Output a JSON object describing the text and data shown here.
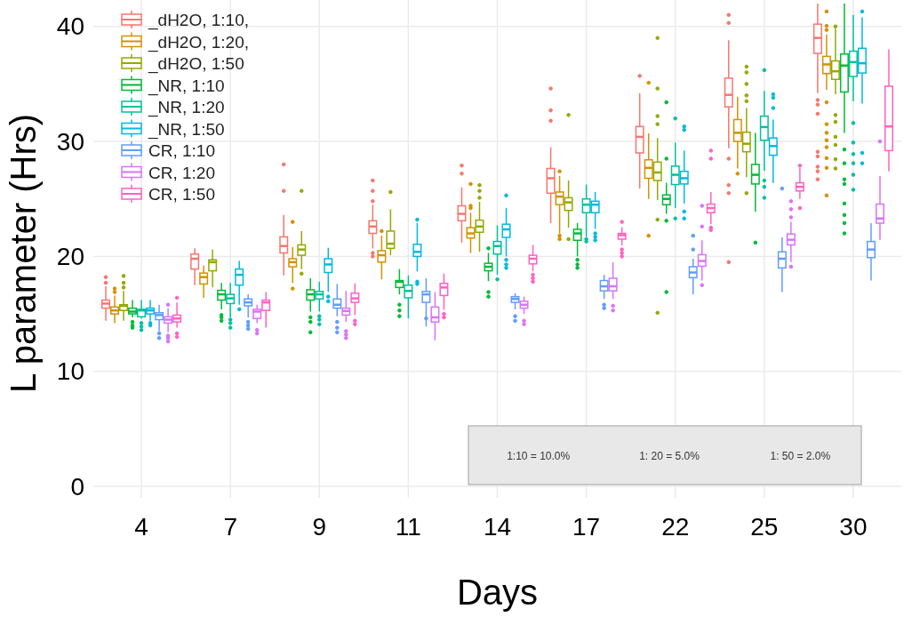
{
  "chart_data": {
    "type": "box",
    "xlabel": "Days",
    "ylabel": "L parameter (Hrs)",
    "categories": [
      "4",
      "7",
      "9",
      "11",
      "14",
      "17",
      "22",
      "25",
      "30"
    ],
    "ylim": [
      -1,
      42.3
    ],
    "yticks": [
      0,
      10,
      20,
      30,
      40
    ],
    "grid": true,
    "legend": "top left",
    "annotations": [
      "1:10 = 10.0%",
      "1: 20 = 5.0%",
      "1: 50 = 2.0%"
    ],
    "series": [
      {
        "name": "_dH2O, 1:10,",
        "color": "#f8766d",
        "boxes": [
          {
            "low": 14.4,
            "q1": 15.5,
            "median": 15.9,
            "q3": 16.2,
            "high": 17.4,
            "outliers": [
              17.7,
              18.2
            ]
          },
          {
            "low": 17.5,
            "q1": 18.9,
            "median": 19.8,
            "q3": 20.2,
            "high": 20.7
          },
          {
            "low": 18.35,
            "q1": 20.3,
            "median": 20.9,
            "q3": 21.7,
            "high": 23.6,
            "outliers": [
              25.7,
              28.0
            ]
          },
          {
            "low": 20.7,
            "q1": 22.0,
            "median": 22.6,
            "q3": 23.1,
            "high": 24.5,
            "outliers": [
              20.0,
              20.3,
              24.8,
              25.7,
              26.6
            ]
          },
          {
            "low": 21.2,
            "q1": 23.1,
            "median": 23.7,
            "q3": 24.4,
            "high": 26.0,
            "outliers": [
              27.2,
              27.9
            ]
          },
          {
            "low": 22.9,
            "q1": 25.5,
            "median": 26.8,
            "q3": 27.65,
            "high": 29.5,
            "outliers": [
              31.8,
              32.7,
              34.6
            ]
          },
          {
            "low": 25.9,
            "q1": 29.0,
            "median": 30.4,
            "q3": 31.3,
            "high": 34.2,
            "outliers": [
              35.7
            ]
          },
          {
            "low": 29.4,
            "q1": 33.0,
            "median": 34.05,
            "q3": 35.5,
            "high": 38.8,
            "outliers": [
              19.5,
              25.5,
              26.2,
              28.5,
              40.3,
              41.0
            ]
          },
          {
            "low": 34.2,
            "q1": 37.65,
            "median": 39.0,
            "q3": 40.2,
            "high": 42.0,
            "outliers": [
              26.7,
              27.4,
              27.8,
              28.7,
              29.1,
              32.4,
              33.2,
              33.6
            ]
          }
        ]
      },
      {
        "name": "_dH2O, 1:20,",
        "color": "#d39200",
        "boxes": [
          {
            "low": 14.2,
            "q1": 15.0,
            "median": 15.3,
            "q3": 15.6,
            "high": 16.6,
            "outliers": [
              16.9,
              17.2
            ]
          },
          {
            "low": 16.4,
            "q1": 17.6,
            "median": 18.2,
            "q3": 18.55,
            "high": 19.2
          },
          {
            "low": 17.7,
            "q1": 19.1,
            "median": 19.5,
            "q3": 19.8,
            "high": 20.8,
            "outliers": [
              17.2,
              23.0
            ]
          },
          {
            "low": 18.0,
            "q1": 19.5,
            "median": 20.1,
            "q3": 20.5,
            "high": 21.8,
            "outliers": [
              22.2
            ]
          },
          {
            "low": 20.3,
            "q1": 21.6,
            "median": 22.0,
            "q3": 22.5,
            "high": 23.8,
            "outliers": [
              24.2,
              24.4,
              26.3
            ]
          },
          {
            "low": 22.0,
            "q1": 24.5,
            "median": 25.2,
            "q3": 25.6,
            "high": 27.0,
            "outliers": [
              21.5,
              21.8,
              27.4
            ]
          },
          {
            "low": 25.0,
            "q1": 26.8,
            "median": 27.7,
            "q3": 28.4,
            "high": 30.7,
            "outliers": [
              21.8,
              35.1
            ]
          },
          {
            "low": 27.65,
            "q1": 30.0,
            "median": 30.75,
            "q3": 31.9,
            "high": 33.9,
            "outliers": [
              27.2
            ]
          },
          {
            "low": 34.5,
            "q1": 35.9,
            "median": 36.7,
            "q3": 37.4,
            "high": 39.3,
            "outliers": [
              25.3,
              27.7,
              28.55,
              29.5,
              30.1,
              30.75,
              31.5,
              33.4,
              39.7,
              40.05,
              41.3
            ]
          }
        ]
      },
      {
        "name": "_dH2O, 1:50",
        "color": "#93aa00",
        "boxes": [
          {
            "low": 14.4,
            "q1": 15.3,
            "median": 15.7,
            "q3": 15.8,
            "high": 17.0,
            "outliers": [
              17.3,
              17.7,
              18.3
            ]
          },
          {
            "low": 17.3,
            "q1": 18.75,
            "median": 19.5,
            "q3": 19.7,
            "high": 20.6
          },
          {
            "low": 18.9,
            "q1": 20.1,
            "median": 20.6,
            "q3": 21.0,
            "high": 22.2,
            "outliers": [
              18.5,
              25.7
            ]
          },
          {
            "low": 20.1,
            "q1": 20.7,
            "median": 21.1,
            "q3": 22.2,
            "high": 24.1,
            "outliers": [
              25.6
            ]
          },
          {
            "low": 20.4,
            "q1": 22.1,
            "median": 22.6,
            "q3": 23.15,
            "high": 24.75,
            "outliers": [
              25.1,
              25.7,
              26.2
            ]
          },
          {
            "low": 22.5,
            "q1": 24.0,
            "median": 24.7,
            "q3": 25.1,
            "high": 26.6,
            "outliers": [
              21.5,
              32.3
            ]
          },
          {
            "low": 24.9,
            "q1": 26.6,
            "median": 27.3,
            "q3": 28.2,
            "high": 30.3,
            "outliers": [
              15.1,
              23.2,
              31.5,
              32.2,
              34.6,
              39.0
            ]
          },
          {
            "low": 26.9,
            "q1": 29.1,
            "median": 29.8,
            "q3": 30.8,
            "high": 32.9,
            "outliers": [
              25.5,
              33.5,
              34.0,
              35.0,
              36.0,
              36.5
            ]
          },
          {
            "low": 34.1,
            "q1": 35.4,
            "median": 36.1,
            "q3": 37.0,
            "high": 39.8,
            "outliers": [
              27.65,
              28.45,
              29.7,
              30.4,
              31.7,
              32.3,
              40.0
            ]
          }
        ]
      },
      {
        "name": "_NR, 1:10",
        "color": "#00ba38",
        "boxes": [
          {
            "low": 14.7,
            "q1": 15.0,
            "median": 15.2,
            "q3": 15.5,
            "high": 16.2,
            "outliers": [
              13.8,
              14.0,
              14.3
            ]
          },
          {
            "low": 15.4,
            "q1": 16.2,
            "median": 16.7,
            "q3": 17.05,
            "high": 17.7,
            "outliers": [
              14.4,
              14.7,
              14.9
            ]
          },
          {
            "low": 15.2,
            "q1": 16.2,
            "median": 16.7,
            "q3": 17.1,
            "high": 18.1,
            "outliers": [
              13.4,
              14.3,
              14.7
            ]
          },
          {
            "low": 16.7,
            "q1": 17.3,
            "median": 17.8,
            "q3": 17.9,
            "high": 18.9,
            "outliers": [
              14.8,
              15.3,
              15.8
            ]
          },
          {
            "low": 17.85,
            "q1": 18.75,
            "median": 19.1,
            "q3": 19.4,
            "high": 20.3,
            "outliers": [
              16.5,
              16.9,
              20.7
            ]
          },
          {
            "low": 20.0,
            "q1": 21.4,
            "median": 22.0,
            "q3": 22.35,
            "high": 22.9,
            "outliers": [
              19.0,
              19.3,
              19.7
            ]
          },
          {
            "low": 23.7,
            "q1": 24.5,
            "median": 25.0,
            "q3": 25.35,
            "high": 26.4,
            "outliers": [
              16.9,
              23.1,
              28.5,
              33.4
            ]
          },
          {
            "low": 23.9,
            "q1": 26.3,
            "median": 27.1,
            "q3": 28.0,
            "high": 30.75,
            "outliers": [
              21.2
            ]
          },
          {
            "low": 30.75,
            "q1": 34.3,
            "median": 36.6,
            "q3": 37.6,
            "high": 42.0,
            "outliers": [
              22.0,
              22.9,
              23.6,
              24.6,
              26.3,
              26.7,
              28.1,
              29.3
            ]
          }
        ]
      },
      {
        "name": "_NR, 1:20",
        "color": "#00c19f",
        "boxes": [
          {
            "low": 14.6,
            "q1": 14.75,
            "median": 15.3,
            "q3": 15.4,
            "high": 16.2,
            "outliers": [
              13.6,
              13.9,
              14.2
            ]
          },
          {
            "low": 14.7,
            "q1": 15.9,
            "median": 16.35,
            "q3": 16.7,
            "high": 17.7,
            "outliers": [
              13.8,
              14.2,
              14.5
            ]
          },
          {
            "low": 15.2,
            "q1": 16.3,
            "median": 16.7,
            "q3": 16.95,
            "high": 17.8,
            "outliers": [
              14.1,
              14.5,
              14.8
            ]
          },
          {
            "low": 14.6,
            "q1": 16.4,
            "median": 17.0,
            "q3": 17.5,
            "high": 18.35
          },
          {
            "low": 18.4,
            "q1": 20.2,
            "median": 20.9,
            "q3": 21.3,
            "high": 22.7,
            "outliers": [
              18.0
            ]
          },
          {
            "low": 21.7,
            "q1": 23.8,
            "median": 24.5,
            "q3": 25.0,
            "high": 26.25,
            "outliers": [
              21.3,
              21.5
            ]
          },
          {
            "low": 24.2,
            "q1": 26.25,
            "median": 27.1,
            "q3": 27.85,
            "high": 29.9,
            "outliers": [
              23.3,
              32.0
            ]
          },
          {
            "low": 27.45,
            "q1": 30.1,
            "median": 31.25,
            "q3": 32.2,
            "high": 34.4,
            "outliers": [
              25.1,
              26.05,
              26.6,
              36.2
            ]
          },
          {
            "low": 33.5,
            "q1": 35.65,
            "median": 36.9,
            "q3": 37.85,
            "high": 41.0,
            "outliers": [
              25.8,
              27.1,
              28.1,
              28.9,
              29.9,
              31.6
            ]
          }
        ]
      },
      {
        "name": "_NR, 1:50",
        "color": "#00b9e3",
        "boxes": [
          {
            "low": 14.4,
            "q1": 15.0,
            "median": 15.3,
            "q3": 15.5,
            "high": 16.2,
            "outliers": [
              14.0,
              14.2
            ]
          },
          {
            "low": 15.8,
            "q1": 17.5,
            "median": 18.4,
            "q3": 18.9,
            "high": 19.6,
            "outliers": [
              15.4
            ]
          },
          {
            "low": 16.9,
            "q1": 18.6,
            "median": 19.3,
            "q3": 19.8,
            "high": 20.75,
            "outliers": [
              16.1,
              16.5
            ]
          },
          {
            "low": 18.7,
            "q1": 20.0,
            "median": 20.4,
            "q3": 21.05,
            "high": 22.9,
            "outliers": [
              17.6,
              17.8,
              23.2
            ]
          },
          {
            "low": 20.0,
            "q1": 21.65,
            "median": 22.35,
            "q3": 22.8,
            "high": 24.2,
            "outliers": [
              19.0,
              19.3,
              19.7,
              25.3
            ]
          },
          {
            "low": 22.4,
            "q1": 23.8,
            "median": 24.5,
            "q3": 24.8,
            "high": 25.6,
            "outliers": [
              21.4,
              21.7,
              22.0
            ]
          },
          {
            "low": 24.6,
            "q1": 26.3,
            "median": 26.8,
            "q3": 27.4,
            "high": 29.2,
            "outliers": [
              23.3,
              23.9,
              31.0,
              31.3
            ]
          },
          {
            "low": 26.4,
            "q1": 28.8,
            "median": 29.6,
            "q3": 30.3,
            "high": 31.9,
            "outliers": [
              32.9,
              33.8,
              34.1
            ]
          },
          {
            "low": 33.3,
            "q1": 35.95,
            "median": 36.8,
            "q3": 38.1,
            "high": 40.8,
            "outliers": [
              28.1,
              29.0,
              41.3
            ]
          }
        ]
      },
      {
        "name": "CR, 1:10",
        "color": "#619cff",
        "boxes": [
          {
            "low": 13.5,
            "q1": 14.5,
            "median": 14.9,
            "q3": 15.1,
            "high": 15.8,
            "outliers": [
              12.9,
              13.3
            ]
          },
          {
            "low": 14.7,
            "q1": 15.7,
            "median": 16.0,
            "q3": 16.3,
            "high": 16.7,
            "outliers": [
              13.7,
              14.0,
              14.3
            ]
          },
          {
            "low": 14.8,
            "q1": 15.5,
            "median": 15.8,
            "q3": 16.3,
            "high": 17.6,
            "outliers": [
              13.4,
              13.8,
              14.3
            ]
          },
          {
            "low": 13.9,
            "q1": 16.0,
            "median": 16.7,
            "q3": 16.95,
            "high": 18.1,
            "outliers": [
              14.6
            ]
          },
          {
            "low": 15.4,
            "q1": 16.0,
            "median": 16.3,
            "q3": 16.5,
            "high": 16.8,
            "outliers": [
              14.4,
              14.8
            ]
          },
          {
            "low": 16.3,
            "q1": 17.0,
            "median": 17.4,
            "q3": 17.9,
            "high": 18.4,
            "outliers": [
              15.5,
              15.8
            ]
          },
          {
            "low": 16.7,
            "q1": 18.15,
            "median": 18.6,
            "q3": 19.1,
            "high": 19.8,
            "outliers": [
              20.6,
              21.8
            ]
          },
          {
            "low": 16.9,
            "q1": 19.0,
            "median": 19.8,
            "q3": 20.4,
            "high": 21.65,
            "outliers": [
              25.9
            ]
          },
          {
            "low": 17.9,
            "q1": 19.9,
            "median": 20.6,
            "q3": 21.3,
            "high": 22.9
          }
        ]
      },
      {
        "name": "CR, 1:20",
        "color": "#db72fb",
        "boxes": [
          {
            "low": 13.4,
            "q1": 14.2,
            "median": 14.5,
            "q3": 14.75,
            "high": 15.5,
            "outliers": [
              12.6,
              12.9,
              13.1,
              15.8
            ]
          },
          {
            "low": 14.2,
            "q1": 14.6,
            "median": 15.2,
            "q3": 15.4,
            "high": 15.8,
            "outliers": [
              13.3,
              13.6
            ]
          },
          {
            "low": 14.3,
            "q1": 14.9,
            "median": 15.25,
            "q3": 15.5,
            "high": 17.0,
            "outliers": [
              12.9,
              13.2,
              13.5
            ]
          },
          {
            "low": 12.7,
            "q1": 14.3,
            "median": 14.7,
            "q3": 15.6,
            "high": 16.9
          },
          {
            "low": 15.0,
            "q1": 15.5,
            "median": 15.8,
            "q3": 16.1,
            "high": 16.5,
            "outliers": [
              14.1,
              14.4
            ]
          },
          {
            "low": 16.3,
            "q1": 17.0,
            "median": 17.4,
            "q3": 18.1,
            "high": 19.5,
            "outliers": [
              15.3,
              15.7
            ]
          },
          {
            "low": 17.9,
            "q1": 19.15,
            "median": 19.6,
            "q3": 20.15,
            "high": 21.4,
            "outliers": [
              17.5,
              22.6,
              24.4
            ]
          },
          {
            "low": 19.5,
            "q1": 21.0,
            "median": 21.45,
            "q3": 21.95,
            "high": 23.0,
            "outliers": [
              19.1,
              23.4,
              24.1,
              24.8
            ]
          },
          {
            "low": 21.45,
            "q1": 22.9,
            "median": 23.3,
            "q3": 24.55,
            "high": 27.0,
            "outliers": [
              30.0
            ]
          }
        ]
      },
      {
        "name": "CR, 1:50",
        "color": "#ff61c3",
        "boxes": [
          {
            "low": 13.8,
            "q1": 14.3,
            "median": 14.6,
            "q3": 14.9,
            "high": 16.0,
            "outliers": [
              13.0,
              13.3,
              16.4
            ]
          },
          {
            "low": 13.8,
            "q1": 15.3,
            "median": 16.0,
            "q3": 16.2,
            "high": 16.9
          },
          {
            "low": 14.9,
            "q1": 16.0,
            "median": 16.35,
            "q3": 16.8,
            "high": 17.65,
            "outliers": [
              14.1,
              14.4
            ]
          },
          {
            "low": 15.35,
            "q1": 16.6,
            "median": 17.3,
            "q3": 17.65,
            "high": 18.5,
            "outliers": [
              14.7,
              15.0
            ]
          },
          {
            "low": 18.7,
            "q1": 19.35,
            "median": 19.8,
            "q3": 20.1,
            "high": 21.0,
            "outliers": [
              17.8,
              18.1,
              18.4
            ]
          },
          {
            "low": 20.95,
            "q1": 21.5,
            "median": 21.85,
            "q3": 22.0,
            "high": 22.55,
            "outliers": [
              20.0,
              20.3,
              20.6,
              23.0
            ]
          },
          {
            "low": 22.8,
            "q1": 23.8,
            "median": 24.2,
            "q3": 24.55,
            "high": 25.6,
            "outliers": [
              22.3,
              22.5,
              28.5,
              29.2
            ]
          },
          {
            "low": 25.0,
            "q1": 25.7,
            "median": 26.05,
            "q3": 26.4,
            "high": 27.7,
            "outliers": [
              24.2,
              27.9
            ]
          },
          {
            "low": 27.4,
            "q1": 29.2,
            "median": 31.3,
            "q3": 34.8,
            "high": 38.0
          }
        ]
      }
    ]
  }
}
